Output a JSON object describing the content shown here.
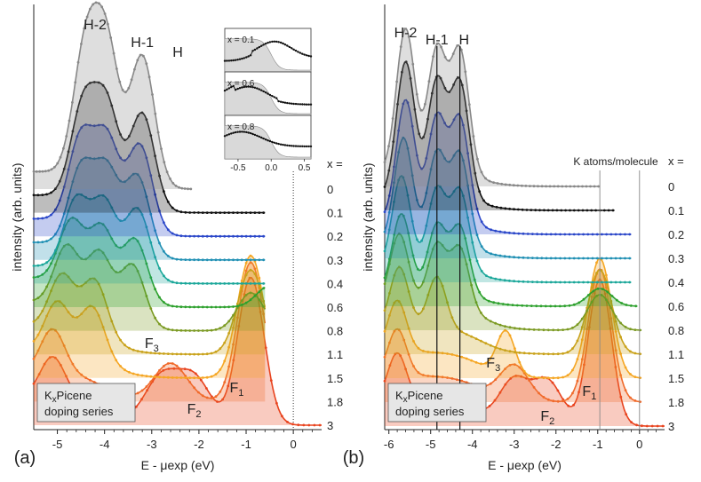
{
  "chart_data": [
    {
      "panel": "(a)",
      "type": "line",
      "title": "",
      "xlabel": "E - μexp (eV)",
      "ylabel": "intensity (arb. units)",
      "xlim": [
        -5.5,
        0.6
      ],
      "xticks": [
        "-5",
        "-4",
        "-3",
        "-2",
        "-1",
        "0"
      ],
      "grid": false,
      "series_title": "x =",
      "series": [
        {
          "name": "0",
          "color": "#888888",
          "peaks_eV": [
            -4.4,
            -3.95,
            -3.2,
            -2.65
          ]
        },
        {
          "name": "0.1",
          "color": "#111111",
          "peaks_eV": [
            -4.45,
            -3.95,
            -3.2
          ]
        },
        {
          "name": "0.2",
          "color": "#2b47c9",
          "peaks_eV": [
            -4.5,
            -3.95,
            -3.25
          ]
        },
        {
          "name": "0.3",
          "color": "#1f8fb3",
          "peaks_eV": [
            -4.5,
            -3.95,
            -3.3
          ]
        },
        {
          "name": "0.4",
          "color": "#1ba79a",
          "peaks_eV": [
            -4.6,
            -4.0,
            -3.3
          ]
        },
        {
          "name": "0.6",
          "color": "#2ca02c",
          "peaks_eV": [
            -4.7,
            -4.05,
            -3.35,
            -0.5
          ]
        },
        {
          "name": "0.8",
          "color": "#7b9a22",
          "peaks_eV": [
            -4.8,
            -4.1,
            -3.4,
            -0.9
          ]
        },
        {
          "name": "1.1",
          "color": "#c9a21a",
          "peaks_eV": [
            -4.9,
            -4.2,
            -0.9
          ]
        },
        {
          "name": "1.5",
          "color": "#f5a623",
          "peaks_eV": [
            -5.0,
            -4.25,
            -0.9
          ]
        },
        {
          "name": "1.8",
          "color": "#f06a2b",
          "peaks_eV": [
            -5.1,
            -2.6,
            -0.9
          ]
        },
        {
          "name": "3",
          "color": "#e8431e",
          "peaks_eV": [
            -5.1,
            -2.8,
            -2.1,
            -0.9
          ]
        }
      ],
      "annotations": [
        "H-2",
        "H-1",
        "H",
        "F₃",
        "F₂",
        "F₁"
      ],
      "legend_box": {
        "line1": "KxPicene",
        "line2": "doping series"
      },
      "inset": {
        "xlim": [
          -0.7,
          0.6
        ],
        "xticks": [
          "-0.5",
          "0.0",
          "0.5"
        ],
        "panels": [
          {
            "label": "x = 0.1"
          },
          {
            "label": "x = 0.6"
          },
          {
            "label": "x = 0.8"
          }
        ]
      }
    },
    {
      "panel": "(b)",
      "type": "line",
      "title": "",
      "xlabel": "E - μexp (eV)",
      "ylabel": "intensity (arb. units)",
      "xlim": [
        -6.1,
        0.6
      ],
      "xticks": [
        "-6",
        "-5",
        "-4",
        "-3",
        "-2",
        "-1",
        "0"
      ],
      "grid": false,
      "series_title": "x =",
      "secondary_title": "K atoms/molecule",
      "vertical_lines_eV": [
        -4.85,
        -4.3,
        -0.95,
        0
      ],
      "series": [
        {
          "name": "0",
          "color": "#888888",
          "peaks_eV": [
            -5.6,
            -4.85,
            -4.3
          ]
        },
        {
          "name": "0.1",
          "color": "#111111",
          "peaks_eV": [
            -5.6,
            -4.85,
            -4.3
          ]
        },
        {
          "name": "0.2",
          "color": "#2b47c9",
          "peaks_eV": [
            -5.6,
            -4.85,
            -4.3
          ]
        },
        {
          "name": "0.3",
          "color": "#1f8fb3",
          "peaks_eV": [
            -5.65,
            -4.85,
            -4.3
          ]
        },
        {
          "name": "0.4",
          "color": "#1ba79a",
          "peaks_eV": [
            -5.7,
            -4.85,
            -4.3
          ]
        },
        {
          "name": "0.6",
          "color": "#2ca02c",
          "peaks_eV": [
            -5.7,
            -4.85,
            -4.3,
            -0.95
          ]
        },
        {
          "name": "0.8",
          "color": "#7b9a22",
          "peaks_eV": [
            -5.75,
            -4.85,
            -4.3,
            -0.95
          ]
        },
        {
          "name": "1.1",
          "color": "#c9a21a",
          "peaks_eV": [
            -5.75,
            -4.85,
            -0.95
          ]
        },
        {
          "name": "1.5",
          "color": "#f5a623",
          "peaks_eV": [
            -5.8,
            -3.2,
            -0.95
          ]
        },
        {
          "name": "1.8",
          "color": "#f06a2b",
          "peaks_eV": [
            -5.8,
            -3.0,
            -0.95
          ]
        },
        {
          "name": "3",
          "color": "#e8431e",
          "peaks_eV": [
            -5.8,
            -3.0,
            -2.2,
            -0.95
          ]
        }
      ],
      "annotations": [
        "H-2",
        "H-1",
        "H",
        "F₃",
        "F₂",
        "F₁"
      ],
      "legend_box": {
        "line1": "KxPicene",
        "line2": "doping series"
      }
    }
  ]
}
